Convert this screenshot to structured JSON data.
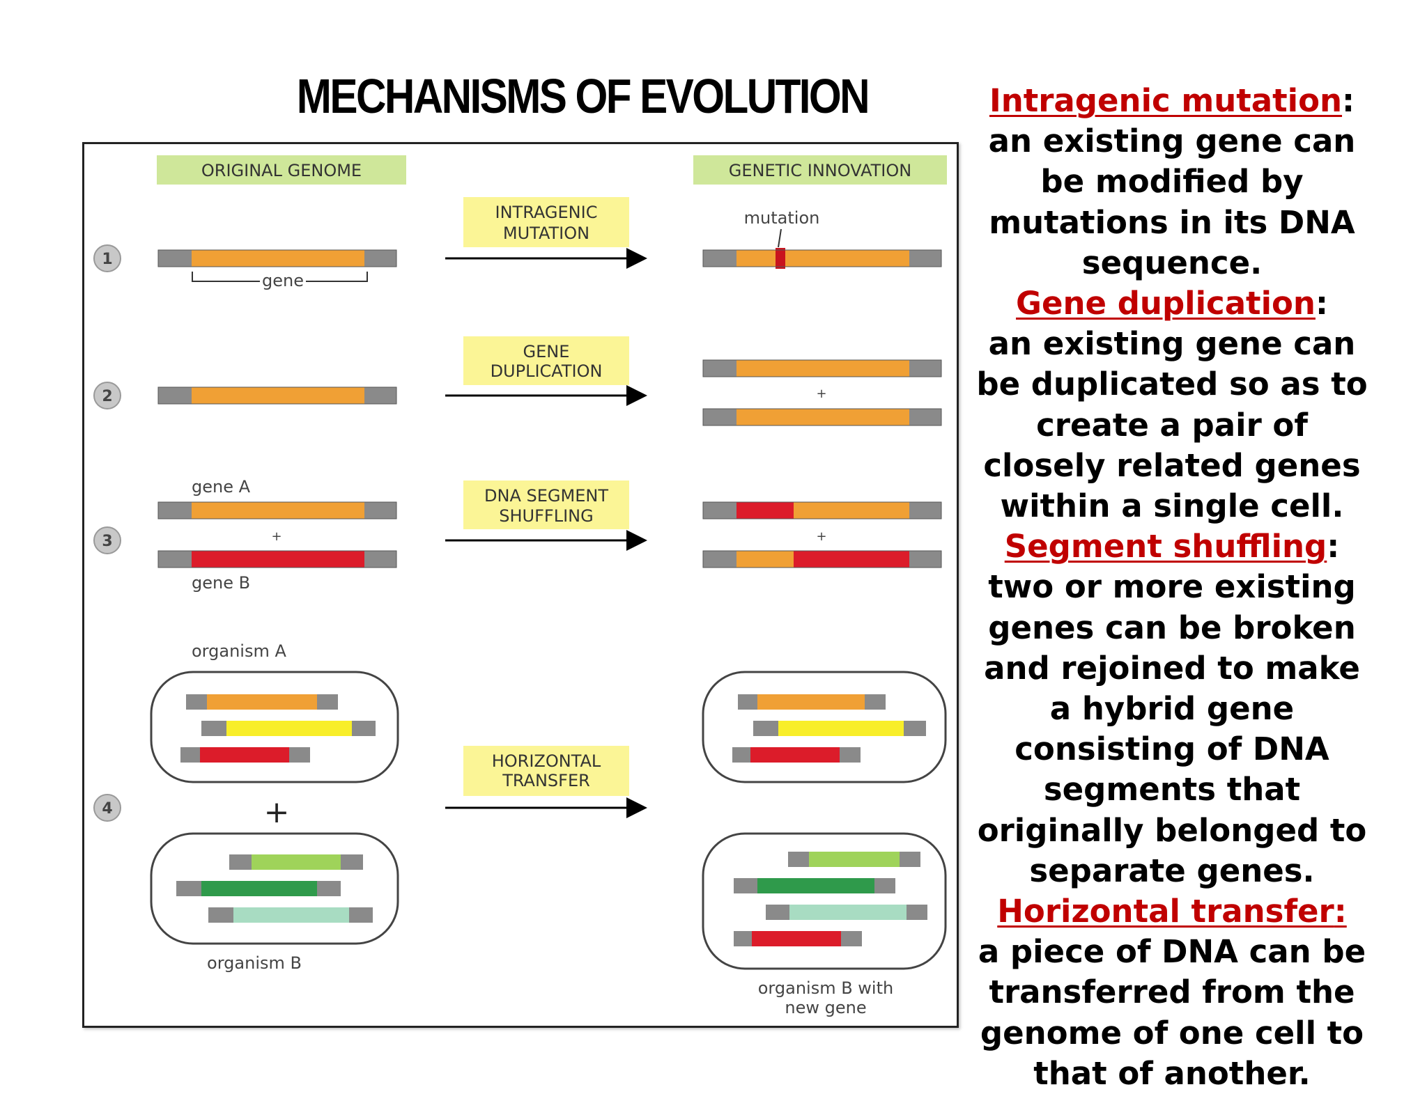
{
  "title": "MECHANISMS OF EVOLUTION",
  "figure": {
    "headers": {
      "left": "ORIGINAL GENOME",
      "right": "GENETIC INNOVATION"
    },
    "rows": [
      {
        "number": "1",
        "process": [
          "INTRAGENIC",
          "MUTATION"
        ]
      },
      {
        "number": "2",
        "process": [
          "GENE",
          "DUPLICATION"
        ]
      },
      {
        "number": "3",
        "process": [
          "DNA SEGMENT",
          "SHUFFLING"
        ]
      },
      {
        "number": "4",
        "process": [
          "HORIZONTAL",
          "TRANSFER"
        ]
      }
    ],
    "labels": {
      "gene": "gene",
      "mutation": "mutation",
      "gene_a": "gene A",
      "gene_b": "gene B",
      "plus": "+",
      "organism_a": "organism A",
      "organism_b": "organism B",
      "organism_b_new": [
        "organism B with",
        "new gene"
      ]
    },
    "colors": {
      "header_bg": "#cfe79a",
      "process_bg": "#fbf596",
      "gene_orange": "#f0a035",
      "gene_red": "#dc1c2a",
      "gene_yellow": "#f8ee2a",
      "gene_lightgreen": "#9fd35a",
      "gene_darkgreen": "#2f9a4b",
      "gene_mint": "#a8dcc2",
      "flank_gray": "#8a8a8a"
    }
  },
  "sections": [
    {
      "term": "Intragenic mutation",
      "term_suffix": ":",
      "body": "an existing gene can be modified by mutations in its DNA sequence."
    },
    {
      "term": "Gene duplication",
      "term_suffix": ":",
      "body": "an existing gene can be duplicated so as to create a pair of closely related genes within a single cell."
    },
    {
      "term": "Segment shuffling",
      "term_suffix": ":",
      "body": "two or more existing genes can be broken and rejoined to make a hybrid gene consisting of DNA segments that originally belonged to separate genes."
    },
    {
      "term": "Horizontal transfer",
      "term_suffix": ":",
      "body": "a piece of DNA can be transferred from the genome of one cell to that of another."
    }
  ]
}
